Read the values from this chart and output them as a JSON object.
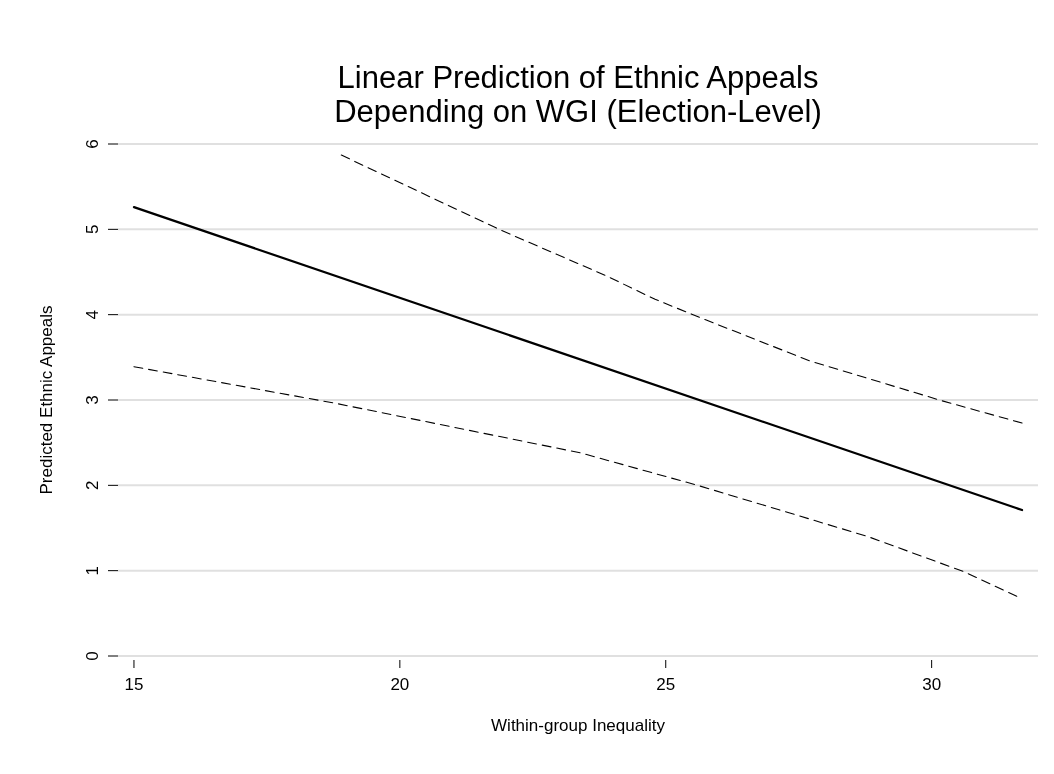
{
  "chart_data": {
    "type": "line",
    "title": "Linear Prediction of Ethnic Appeals\nDepending on WGI (Election-Level)",
    "xlabel": "Within-group Inequality",
    "ylabel": "Predicted Ethnic Appeals",
    "xlim": [
      14.7,
      32
    ],
    "xticks": [
      15,
      20,
      25,
      30
    ],
    "ylim": [
      0,
      6
    ],
    "yticks": [
      0,
      1,
      2,
      3,
      4,
      5,
      6
    ],
    "grid": "y",
    "series": [
      {
        "color": "#000000",
        "line_style": "solid",
        "x": [
          15,
          31.7
        ],
        "values": [
          5.26,
          1.71
        ]
      },
      {
        "color": "#000000",
        "line_style": "dashed",
        "x": [
          18.9,
          21.9,
          23.9,
          24.8,
          25.75,
          27.7,
          30.2,
          31.7
        ],
        "values": [
          5.87,
          4.99,
          4.45,
          4.18,
          3.94,
          3.46,
          2.99,
          2.73
        ]
      },
      {
        "color": "#000000",
        "line_style": "dashed",
        "x": [
          15,
          18.8,
          23.4,
          25.6,
          28.8,
          30.6,
          31.6
        ],
        "values": [
          3.39,
          2.96,
          2.38,
          2.0,
          1.4,
          0.99,
          0.7
        ]
      }
    ]
  }
}
